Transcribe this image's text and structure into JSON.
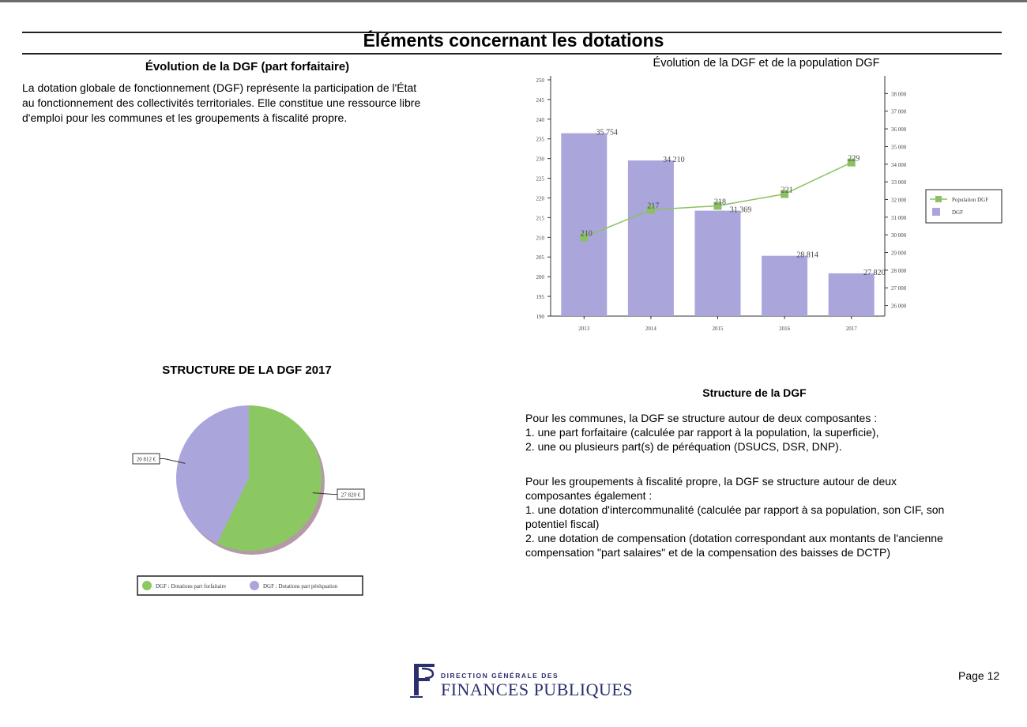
{
  "page": {
    "title": "Éléments concernant les dotations",
    "page_label": "Page 12"
  },
  "left_section": {
    "heading": "Évolution de la DGF (part forfaitaire)",
    "paragraph": [
      "La dotation globale de fonctionnement (DGF) représente la participation de l'État",
      "au fonctionnement des collectivités territoriales. Elle constitue une ressource libre",
      "d'emploi pour les communes et les groupements à fiscalité propre."
    ]
  },
  "chart_title": "Évolution de la DGF et de la population DGF",
  "structure_chart_title": "STRUCTURE DE LA DGF 2017",
  "right_section": {
    "heading": "Structure de la DGF",
    "block1": [
      "Pour les communes, la DGF se structure autour de deux composantes :",
      "1. une part forfaitaire (calculée par rapport à la population, la superficie),",
      "2. une ou plusieurs part(s) de péréquation (DSUCS, DSR, DNP)."
    ],
    "block2": [
      "Pour les groupements à fiscalité propre, la DGF se structure autour de deux",
      "composantes également :",
      "1. une dotation d'intercommunalité (calculée par rapport à sa population, son CIF, son",
      "potentiel fiscal)",
      "2. une dotation de compensation (dotation correspondant aux montants de l'ancienne",
      "compensation \"part salaires\" et de la compensation des baisses de DCTP)"
    ]
  },
  "footer": {
    "logo_line1": "DIRECTION GÉNÉRALE DES",
    "logo_line2": "FINANCES PUBLIQUES",
    "logo_lettering": "F"
  },
  "colors": {
    "bar": "#aaa6dc",
    "line": "#8cc063",
    "marker": "#8cc063",
    "pie_green": "#8cc862",
    "pie_purple": "#aaa6dc",
    "brand": "#2a2f6e"
  },
  "chart_data": [
    {
      "type": "bar+line",
      "title": "Évolution de la DGF et de la population DGF",
      "categories": [
        "2013",
        "2014",
        "2015",
        "2016",
        "2017"
      ],
      "left_axis": {
        "ylim": [
          190,
          251
        ],
        "ticks": [
          "190",
          "195",
          "200",
          "205",
          "210",
          "215",
          "220",
          "225",
          "230",
          "235",
          "240",
          "245",
          "250"
        ]
      },
      "right_axis": {
        "ylim": [
          25400,
          39000
        ],
        "ticks": [
          "26 000",
          "27 000",
          "28 000",
          "29 000",
          "30 000",
          "31 000",
          "32 000",
          "33 000",
          "34 000",
          "35 000",
          "36 000",
          "37 000",
          "38 000"
        ]
      },
      "series": [
        {
          "name": "DGF",
          "kind": "bar",
          "axis": "right",
          "values": [
            35754,
            34210,
            31369,
            28814,
            27820
          ],
          "labels": [
            "35 754",
            "34 210",
            "31 369",
            "28 814",
            "27 820"
          ]
        },
        {
          "name": "Population DGF",
          "kind": "line",
          "axis": "left",
          "values": [
            210,
            217,
            218,
            221,
            229
          ],
          "labels": [
            "210",
            "217",
            "218",
            "221",
            "229"
          ]
        }
      ],
      "legend_position": "right",
      "grid": false
    },
    {
      "type": "pie",
      "title": "STRUCTURE DE LA DGF 2017",
      "slices": [
        {
          "name": "DGF : Dotations part forfaitaire",
          "value": 27820,
          "label": "27 820 €"
        },
        {
          "name": "DGF : Dotations part péréquation",
          "value": 20812,
          "label": "20 812 €"
        }
      ],
      "legend_position": "bottom"
    }
  ]
}
